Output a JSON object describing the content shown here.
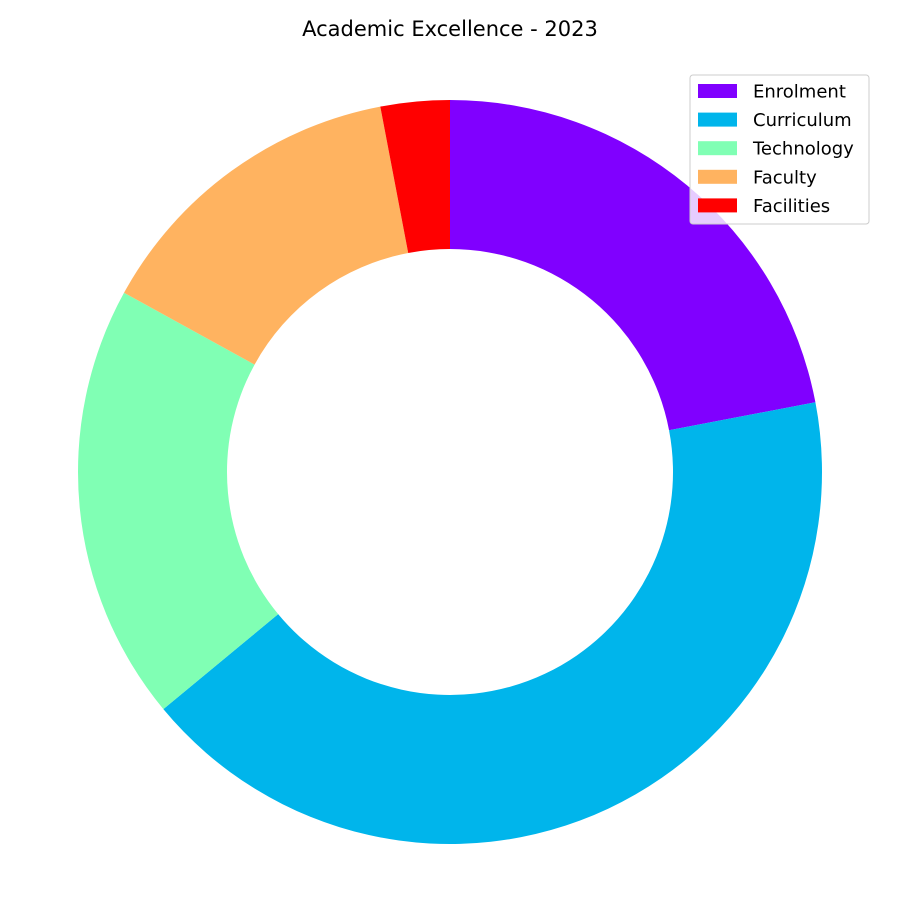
{
  "chart_data": {
    "type": "pie",
    "variant": "donut",
    "title": "Academic Excellence - 2023",
    "categories": [
      "Enrolment",
      "Curriculum",
      "Technology",
      "Faculty",
      "Facilities"
    ],
    "values": [
      22,
      42,
      19,
      14,
      3
    ],
    "colors": [
      "#8000ff",
      "#00b5eb",
      "#80ffb4",
      "#ffb360",
      "#ff0000"
    ],
    "start_angle_deg": 90,
    "direction": "clockwise",
    "legend": {
      "position": "top-right",
      "entries": [
        "Enrolment",
        "Curriculum",
        "Technology",
        "Faculty",
        "Facilities"
      ]
    }
  }
}
